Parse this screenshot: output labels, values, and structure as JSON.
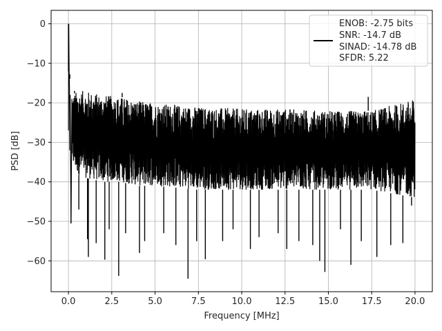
{
  "chart_data": {
    "type": "line",
    "xlabel": "Frequency [MHz]",
    "ylabel": "PSD [dB]",
    "xlim": [
      -1.0,
      21.0
    ],
    "ylim": [
      -67.8,
      3.4
    ],
    "xticks": [
      0.0,
      2.5,
      5.0,
      7.5,
      10.0,
      12.5,
      15.0,
      17.5,
      20.0
    ],
    "xtick_labels": [
      "0.0",
      "2.5",
      "5.0",
      "7.5",
      "10.0",
      "12.5",
      "15.0",
      "17.5",
      "20.0"
    ],
    "yticks": [
      0,
      -10,
      -20,
      -30,
      -40,
      -50,
      -60
    ],
    "ytick_labels": [
      "0",
      "−10",
      "−20",
      "−30",
      "−40",
      "−50",
      "−60"
    ],
    "grid": true,
    "legend_position": "top-right",
    "legend_entries": [
      "ENOB: -2.75 bits",
      "SNR: -14.7 dB",
      "SINAD: -14.78 dB",
      "SFDR: 5.22"
    ],
    "series_color": "#000000",
    "series": [
      {
        "x": [
          0.0,
          0.02,
          0.04,
          0.06,
          0.08,
          0.1,
          0.15,
          0.2,
          0.3,
          0.5,
          0.75,
          1.0,
          1.5,
          2.0,
          2.5,
          3.0,
          4.0,
          5.0,
          7.5,
          10.0,
          12.5,
          15.0,
          17.5,
          20.0
        ],
        "y": [
          -27,
          0,
          -12,
          -16,
          -32,
          -18,
          -50.5,
          -19,
          -41,
          -17,
          -45,
          -18,
          -52,
          -19,
          -55,
          -18,
          -57,
          -20,
          -54,
          -21,
          -50,
          -22,
          -49,
          -19
        ],
        "envelope_x": [
          0.0,
          0.25,
          0.5,
          1.0,
          2.0,
          3.0,
          4.0,
          5.0,
          7.5,
          10.0,
          12.5,
          15.0,
          17.5,
          20.0
        ],
        "envelope_upper": [
          -12,
          -18,
          -17,
          -17,
          -18,
          -18.5,
          -19.5,
          -20,
          -21,
          -21.5,
          -21.5,
          -22,
          -22,
          -19
        ],
        "envelope_lower": [
          -32,
          -36,
          -38,
          -39,
          -40,
          -40,
          -41,
          -41,
          -42,
          -42,
          -42,
          -42,
          -42,
          -44
        ],
        "dips": [
          {
            "x": 0.15,
            "y": -50.5
          },
          {
            "x": 0.6,
            "y": -47
          },
          {
            "x": 1.1,
            "y": -54.5
          },
          {
            "x": 1.15,
            "y": -59
          },
          {
            "x": 1.6,
            "y": -55.5
          },
          {
            "x": 2.1,
            "y": -59.7
          },
          {
            "x": 2.35,
            "y": -52
          },
          {
            "x": 2.9,
            "y": -63.8
          },
          {
            "x": 3.3,
            "y": -53
          },
          {
            "x": 4.1,
            "y": -58
          },
          {
            "x": 4.4,
            "y": -55
          },
          {
            "x": 5.5,
            "y": -53
          },
          {
            "x": 6.2,
            "y": -56
          },
          {
            "x": 6.9,
            "y": -64.5
          },
          {
            "x": 7.4,
            "y": -55
          },
          {
            "x": 7.9,
            "y": -59.6
          },
          {
            "x": 8.9,
            "y": -55
          },
          {
            "x": 9.5,
            "y": -52
          },
          {
            "x": 10.5,
            "y": -57
          },
          {
            "x": 11.0,
            "y": -54
          },
          {
            "x": 12.1,
            "y": -53
          },
          {
            "x": 12.6,
            "y": -57
          },
          {
            "x": 13.3,
            "y": -55
          },
          {
            "x": 14.1,
            "y": -56
          },
          {
            "x": 14.5,
            "y": -60
          },
          {
            "x": 14.8,
            "y": -62.8
          },
          {
            "x": 15.7,
            "y": -52
          },
          {
            "x": 16.3,
            "y": -61
          },
          {
            "x": 16.9,
            "y": -55
          },
          {
            "x": 17.8,
            "y": -59
          },
          {
            "x": 18.6,
            "y": -56
          },
          {
            "x": 19.3,
            "y": -55.5
          },
          {
            "x": 19.8,
            "y": -46
          }
        ],
        "peaks": [
          {
            "x": 0.0,
            "y": 0
          },
          {
            "x": 0.08,
            "y": -12.8
          },
          {
            "x": 0.35,
            "y": -17
          },
          {
            "x": 0.9,
            "y": -17
          },
          {
            "x": 3.1,
            "y": -17.5
          },
          {
            "x": 17.3,
            "y": -18.5
          },
          {
            "x": 20.0,
            "y": -19
          }
        ]
      }
    ]
  }
}
